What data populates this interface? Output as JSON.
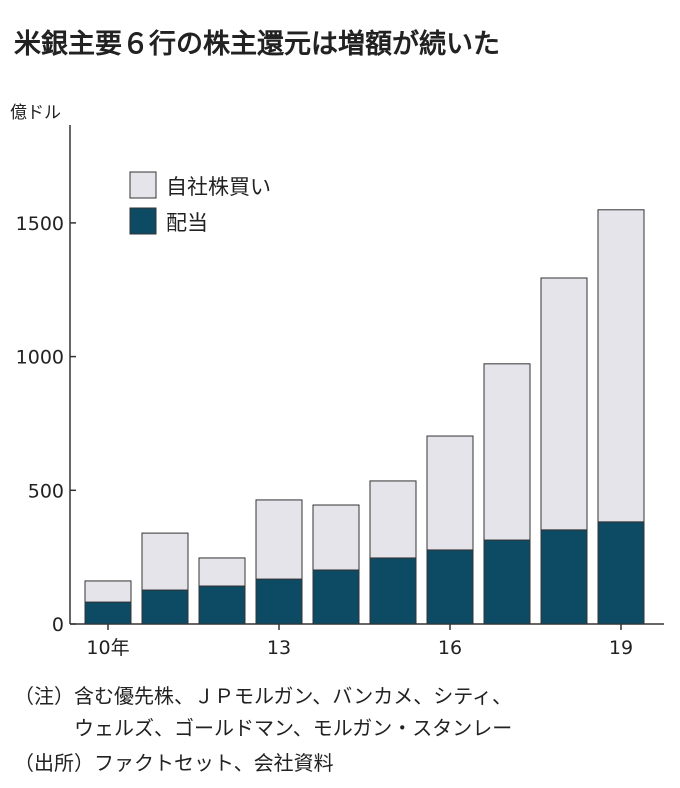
{
  "title": "米銀主要６行の株主還元は増額が続いた",
  "notes": [
    "（注）含む優先株、ＪＰモルガン、バンカメ、シティ、",
    "　　　ウェルズ、ゴールドマン、モルガン・スタンレー",
    "（出所）ファクトセット、会社資料"
  ],
  "chart_data": {
    "type": "bar",
    "stacked": true,
    "title": "米銀主要６行の株主還元は増額が続いた",
    "ylabel": "億ドル",
    "ylim": [
      0,
      1800
    ],
    "yticks": [
      0,
      500,
      1000,
      1500
    ],
    "categories": [
      "2010",
      "2011",
      "2012",
      "2013",
      "2014",
      "2015",
      "2016",
      "2017",
      "2018",
      "2019"
    ],
    "xtick_labels": [
      {
        "index": 0,
        "label": "10年"
      },
      {
        "index": 3,
        "label": "13"
      },
      {
        "index": 6,
        "label": "16"
      },
      {
        "index": 9,
        "label": "19"
      }
    ],
    "series": [
      {
        "name": "配当",
        "color": "#0d4a63",
        "values": [
          82,
          127,
          142,
          168,
          202,
          247,
          277,
          314,
          352,
          382
        ]
      },
      {
        "name": "自社株買い",
        "color": "#e4e4ea",
        "values": [
          79,
          213,
          105,
          296,
          243,
          288,
          426,
          659,
          942,
          1167
        ]
      }
    ],
    "legend_position": "top-left"
  }
}
